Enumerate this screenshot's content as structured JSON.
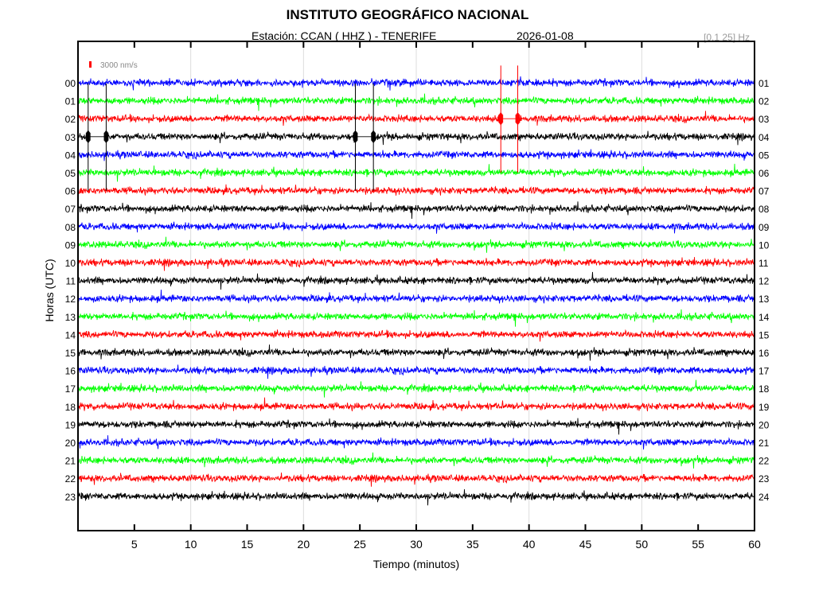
{
  "chart_data": {
    "type": "line",
    "title": "INSTITUTO GEOGRÁFICO NACIONAL",
    "subtitle_station": "Estación:  CCAN ( HHZ ) - TENERIFE",
    "subtitle_date": "2026-01-08",
    "filter_band": "[0.1 25] Hz",
    "scale_label": "3000 nm/s",
    "xlabel": "Tiempo (minutos)",
    "ylabel": "Horas (UTC)",
    "xlim": [
      0,
      60
    ],
    "x_ticks": [
      5,
      10,
      15,
      20,
      25,
      30,
      35,
      40,
      45,
      50,
      55,
      60
    ],
    "x_gridlines": [
      10,
      20,
      30,
      40,
      50
    ],
    "left_hour_labels": [
      "00",
      "01",
      "02",
      "03",
      "04",
      "05",
      "06",
      "07",
      "08",
      "09",
      "10",
      "11",
      "12",
      "13",
      "14",
      "15",
      "16",
      "17",
      "18",
      "19",
      "20",
      "21",
      "22",
      "23"
    ],
    "right_hour_labels": [
      "01",
      "02",
      "03",
      "04",
      "05",
      "06",
      "07",
      "08",
      "09",
      "10",
      "11",
      "12",
      "13",
      "14",
      "15",
      "16",
      "17",
      "18",
      "19",
      "20",
      "21",
      "22",
      "23",
      "24"
    ],
    "trace_colors": [
      "#0000ff",
      "#00ff00",
      "#ff0000",
      "#000000"
    ],
    "noise_amplitude_rel": 0.18,
    "events": [
      {
        "row": 3,
        "start_min": 0.9,
        "end_min": 2.5,
        "color": "#000000",
        "spike_rows_above": 3,
        "spike_rows_below": 3
      },
      {
        "row": 3,
        "start_min": 24.6,
        "end_min": 26.2,
        "color": "#000000",
        "spike_rows_above": 3,
        "spike_rows_below": 3
      },
      {
        "row": 2,
        "start_min": 37.5,
        "end_min": 39.0,
        "color": "#ff0000",
        "spike_rows_above": 3,
        "spike_rows_below": 3
      }
    ]
  }
}
